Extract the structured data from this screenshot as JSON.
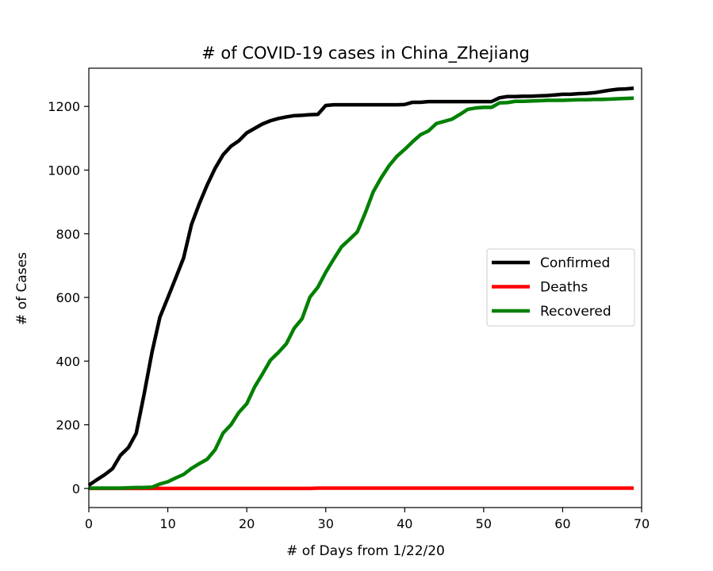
{
  "chart_data": {
    "type": "line",
    "title": "# of COVID-19 cases in China_Zhejiang",
    "xlabel": "# of Days from 1/22/20",
    "ylabel": "# of Cases",
    "xlim": [
      0,
      70
    ],
    "ylim": [
      -60,
      1320
    ],
    "xticks": [
      0,
      10,
      20,
      30,
      40,
      50,
      60,
      70
    ],
    "yticks": [
      0,
      200,
      400,
      600,
      800,
      1000,
      1200
    ],
    "grid": false,
    "legend": "center-right",
    "series": [
      {
        "name": "Confirmed",
        "color": "#000000",
        "points": [
          [
            0,
            10
          ],
          [
            1,
            27
          ],
          [
            2,
            43
          ],
          [
            3,
            62
          ],
          [
            4,
            104
          ],
          [
            5,
            128
          ],
          [
            6,
            173
          ],
          [
            7,
            296
          ],
          [
            8,
            428
          ],
          [
            9,
            538
          ],
          [
            10,
            599
          ],
          [
            11,
            661
          ],
          [
            12,
            724
          ],
          [
            13,
            829
          ],
          [
            14,
            895
          ],
          [
            15,
            954
          ],
          [
            16,
            1006
          ],
          [
            17,
            1048
          ],
          [
            18,
            1075
          ],
          [
            19,
            1092
          ],
          [
            20,
            1117
          ],
          [
            21,
            1131
          ],
          [
            22,
            1145
          ],
          [
            23,
            1155
          ],
          [
            24,
            1162
          ],
          [
            25,
            1167
          ],
          [
            26,
            1171
          ],
          [
            27,
            1172
          ],
          [
            28,
            1174
          ],
          [
            29,
            1175
          ],
          [
            30,
            1203
          ],
          [
            31,
            1205
          ],
          [
            32,
            1205
          ],
          [
            33,
            1205
          ],
          [
            34,
            1205
          ],
          [
            35,
            1205
          ],
          [
            36,
            1205
          ],
          [
            37,
            1205
          ],
          [
            38,
            1205
          ],
          [
            39,
            1205
          ],
          [
            40,
            1206
          ],
          [
            41,
            1213
          ],
          [
            42,
            1213
          ],
          [
            43,
            1215
          ],
          [
            44,
            1215
          ],
          [
            45,
            1215
          ],
          [
            46,
            1215
          ],
          [
            47,
            1215
          ],
          [
            48,
            1215
          ],
          [
            49,
            1215
          ],
          [
            50,
            1215
          ],
          [
            51,
            1215
          ],
          [
            52,
            1227
          ],
          [
            53,
            1231
          ],
          [
            54,
            1231
          ],
          [
            55,
            1232
          ],
          [
            56,
            1232
          ],
          [
            57,
            1233
          ],
          [
            58,
            1234
          ],
          [
            59,
            1236
          ],
          [
            60,
            1238
          ],
          [
            61,
            1238
          ],
          [
            62,
            1240
          ],
          [
            63,
            1241
          ],
          [
            64,
            1243
          ],
          [
            65,
            1247
          ],
          [
            66,
            1251
          ],
          [
            67,
            1254
          ],
          [
            68,
            1255
          ],
          [
            69,
            1257
          ]
        ]
      },
      {
        "name": "Deaths",
        "color": "#ff0000",
        "points": [
          [
            0,
            0
          ],
          [
            5,
            0
          ],
          [
            10,
            0
          ],
          [
            15,
            0
          ],
          [
            20,
            0
          ],
          [
            25,
            0
          ],
          [
            28,
            0
          ],
          [
            29,
            1
          ],
          [
            35,
            1
          ],
          [
            40,
            1
          ],
          [
            45,
            1
          ],
          [
            50,
            1
          ],
          [
            55,
            1
          ],
          [
            60,
            1
          ],
          [
            65,
            1
          ],
          [
            69,
            1
          ]
        ]
      },
      {
        "name": "Recovered",
        "color": "#008000",
        "points": [
          [
            0,
            1
          ],
          [
            1,
            1
          ],
          [
            2,
            1
          ],
          [
            3,
            1
          ],
          [
            4,
            1
          ],
          [
            5,
            2
          ],
          [
            6,
            3
          ],
          [
            7,
            3
          ],
          [
            8,
            4
          ],
          [
            9,
            14
          ],
          [
            10,
            21
          ],
          [
            11,
            33
          ],
          [
            12,
            44
          ],
          [
            13,
            63
          ],
          [
            14,
            78
          ],
          [
            15,
            92
          ],
          [
            16,
            122
          ],
          [
            17,
            174
          ],
          [
            18,
            200
          ],
          [
            19,
            239
          ],
          [
            20,
            266
          ],
          [
            21,
            319
          ],
          [
            22,
            360
          ],
          [
            23,
            403
          ],
          [
            24,
            427
          ],
          [
            25,
            454
          ],
          [
            26,
            503
          ],
          [
            27,
            533
          ],
          [
            28,
            601
          ],
          [
            29,
            632
          ],
          [
            30,
            679
          ],
          [
            31,
            720
          ],
          [
            32,
            759
          ],
          [
            33,
            782
          ],
          [
            34,
            806
          ],
          [
            35,
            865
          ],
          [
            36,
            931
          ],
          [
            37,
            975
          ],
          [
            38,
            1013
          ],
          [
            39,
            1043
          ],
          [
            40,
            1065
          ],
          [
            41,
            1089
          ],
          [
            42,
            1111
          ],
          [
            43,
            1123
          ],
          [
            44,
            1146
          ],
          [
            45,
            1153
          ],
          [
            46,
            1160
          ],
          [
            47,
            1175
          ],
          [
            48,
            1191
          ],
          [
            49,
            1195
          ],
          [
            50,
            1197
          ],
          [
            51,
            1197
          ],
          [
            52,
            1211
          ],
          [
            53,
            1212
          ],
          [
            54,
            1216
          ],
          [
            55,
            1216
          ],
          [
            56,
            1217
          ],
          [
            57,
            1218
          ],
          [
            58,
            1219
          ],
          [
            59,
            1219
          ],
          [
            60,
            1219
          ],
          [
            61,
            1220
          ],
          [
            62,
            1221
          ],
          [
            63,
            1221
          ],
          [
            64,
            1222
          ],
          [
            65,
            1222
          ],
          [
            66,
            1223
          ],
          [
            67,
            1224
          ],
          [
            68,
            1225
          ],
          [
            69,
            1226
          ]
        ]
      }
    ]
  }
}
